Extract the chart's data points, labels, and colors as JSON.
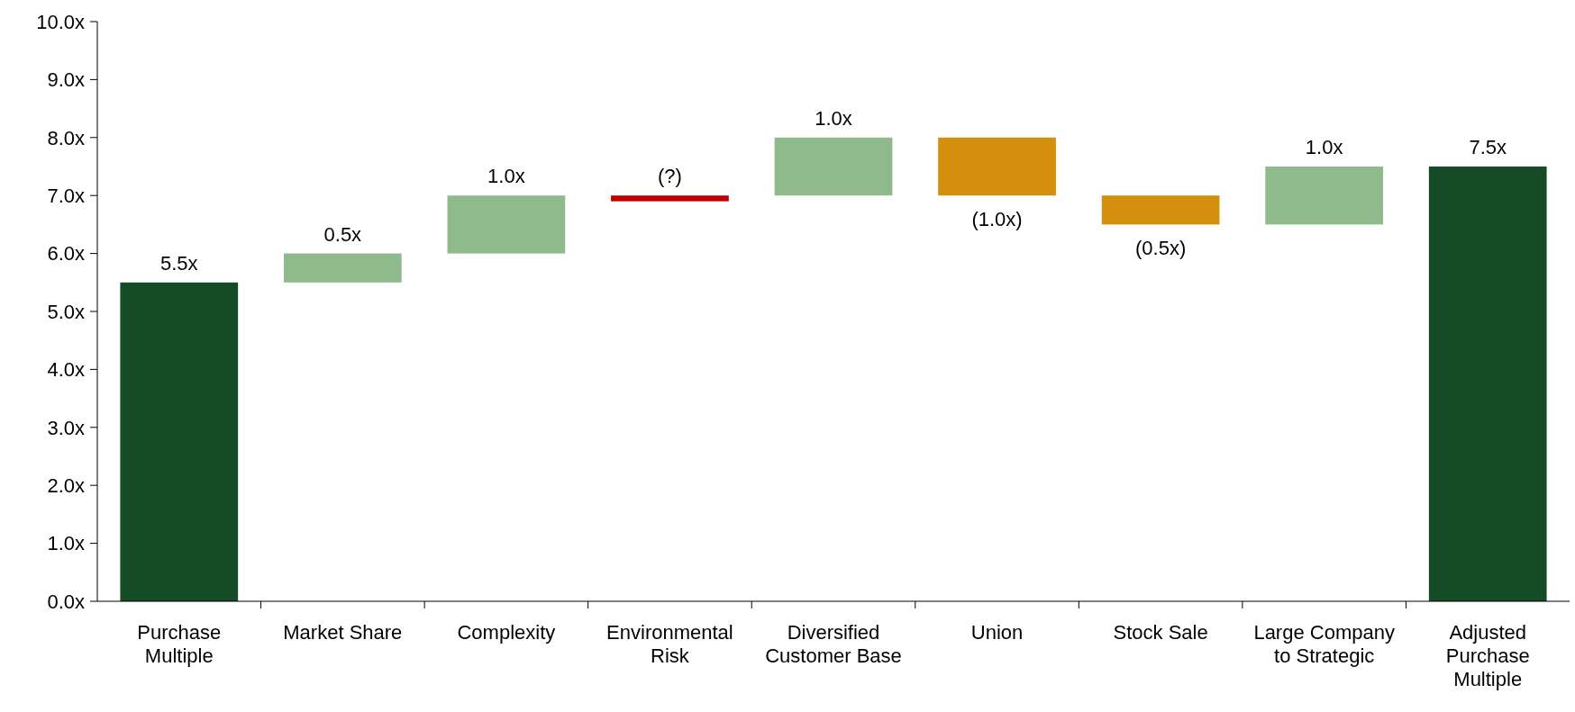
{
  "chart_data": {
    "type": "bar",
    "categories": [
      "Purchase\nMultiple",
      "Market Share",
      "Complexity",
      "Environmental\nRisk",
      "Diversified\nCustomer Base",
      "Union",
      "Stock Sale",
      "Large Company\nto Strategic",
      "Adjusted\nPurchase\nMultiple"
    ],
    "values": [
      5.5,
      0.5,
      1.0,
      0.1,
      1.0,
      -1.0,
      -0.5,
      1.0,
      7.5
    ],
    "base": [
      0,
      5.5,
      6.0,
      6.9,
      7.0,
      8.0,
      7.0,
      6.5,
      0
    ],
    "colors": [
      "#154c27",
      "#8fba8b",
      "#8fba8b",
      "#c00000",
      "#8fba8b",
      "#d4900c",
      "#d4900c",
      "#8fba8b",
      "#154c27"
    ],
    "value_labels": [
      "5.5x",
      "0.5x",
      "1.0x",
      "(?)",
      "1.0x",
      "(1.0x)",
      "(0.5x)",
      "1.0x",
      "7.5x"
    ],
    "ylim": [
      0,
      10
    ],
    "yticks": [
      {
        "value": 0,
        "label": "0.0x"
      },
      {
        "value": 1,
        "label": "1.0x"
      },
      {
        "value": 2,
        "label": "2.0x"
      },
      {
        "value": 3,
        "label": "3.0x"
      },
      {
        "value": 4,
        "label": "4.0x"
      },
      {
        "value": 5,
        "label": "5.0x"
      },
      {
        "value": 6,
        "label": "6.0x"
      },
      {
        "value": 7,
        "label": "7.0x"
      },
      {
        "value": 8,
        "label": "8.0x"
      },
      {
        "value": 9,
        "label": "9.0x"
      },
      {
        "value": 10,
        "label": "10.0x"
      }
    ],
    "grid": false
  }
}
